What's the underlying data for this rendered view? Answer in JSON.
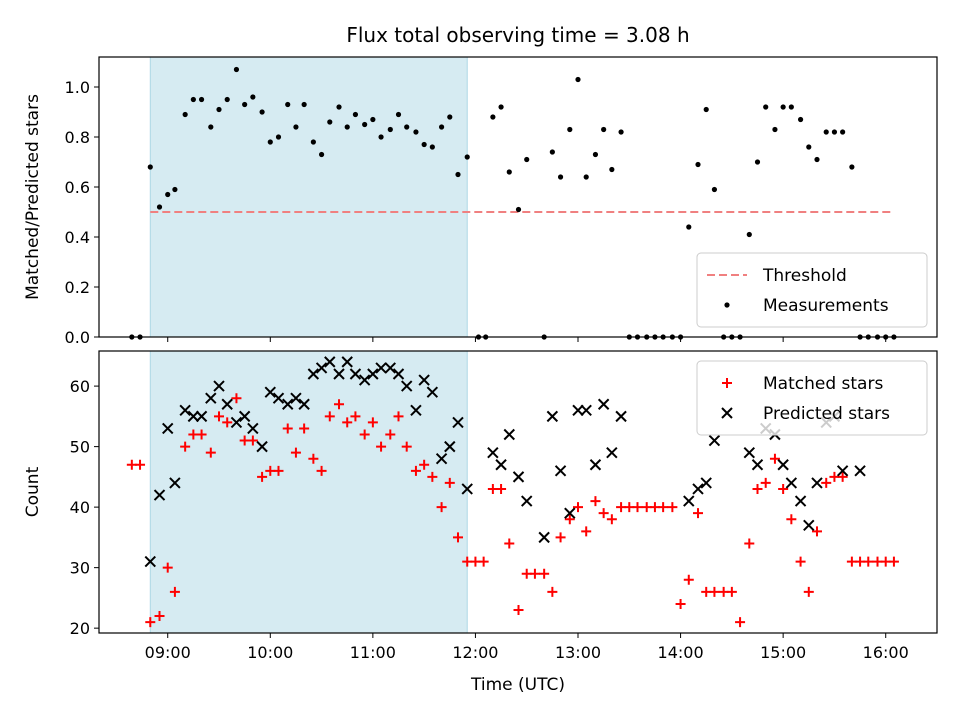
{
  "chart_data": [
    {
      "type": "scatter",
      "title": "Flux total observing time = 3.08 h",
      "xlabel": "",
      "ylabel": "Matched/Predicted stars",
      "xlim": [
        8.33,
        16.5
      ],
      "ylim": [
        0,
        1.12
      ],
      "yticks": [
        0.0,
        0.2,
        0.4,
        0.6,
        0.8,
        1.0
      ],
      "ytick_labels": [
        "0.0",
        "0.2",
        "0.4",
        "0.6",
        "0.8",
        "1.0"
      ],
      "xticks": [
        9,
        10,
        11,
        12,
        13,
        14,
        15,
        16
      ],
      "grid": false,
      "legend": "lower-right",
      "highlight_span": [
        8.83,
        11.92
      ],
      "threshold": {
        "name": "Threshold",
        "value": 0.5,
        "x_range": [
          8.83,
          16.05
        ],
        "color": "#f08080"
      },
      "series": [
        {
          "name": "Measurements",
          "color": "#000000",
          "marker": "dot",
          "x": [
            8.65,
            8.73,
            8.83,
            8.92,
            9.0,
            9.07,
            9.17,
            9.25,
            9.33,
            9.42,
            9.5,
            9.58,
            9.67,
            9.75,
            9.83,
            9.92,
            10.0,
            10.08,
            10.17,
            10.25,
            10.33,
            10.42,
            10.5,
            10.58,
            10.67,
            10.75,
            10.83,
            10.92,
            11.0,
            11.08,
            11.17,
            11.25,
            11.33,
            11.42,
            11.5,
            11.58,
            11.67,
            11.75,
            11.83,
            11.92,
            12.03,
            12.1,
            12.17,
            12.25,
            12.33,
            12.42,
            12.5,
            12.67,
            12.75,
            12.83,
            12.92,
            13.0,
            13.08,
            13.17,
            13.25,
            13.33,
            13.42,
            13.5,
            13.58,
            13.67,
            13.75,
            13.83,
            13.92,
            14.0,
            14.08,
            14.17,
            14.25,
            14.33,
            14.42,
            14.5,
            14.58,
            14.67,
            14.75,
            14.83,
            14.92,
            15.0,
            15.08,
            15.17,
            15.25,
            15.33,
            15.42,
            15.5,
            15.58,
            15.67,
            15.75,
            15.83,
            15.92,
            16.0,
            16.08
          ],
          "y": [
            0,
            0,
            0.68,
            0.52,
            0.57,
            0.59,
            0.89,
            0.95,
            0.95,
            0.84,
            0.91,
            0.95,
            1.07,
            0.93,
            0.96,
            0.9,
            0.78,
            0.8,
            0.93,
            0.84,
            0.93,
            0.78,
            0.73,
            0.86,
            0.92,
            0.84,
            0.89,
            0.85,
            0.87,
            0.8,
            0.83,
            0.89,
            0.84,
            0.82,
            0.77,
            0.76,
            0.84,
            0.88,
            0.65,
            0.72,
            0,
            0,
            0.88,
            0.92,
            0.66,
            0.51,
            0.71,
            0,
            0.74,
            0.64,
            0.83,
            1.03,
            0.64,
            0.73,
            0.83,
            0.67,
            0.82,
            0,
            0,
            0,
            0,
            0,
            0,
            0,
            0.44,
            0.69,
            0.91,
            0.59,
            0,
            0,
            0,
            0.41,
            0.7,
            0.92,
            0.83,
            0.92,
            0.92,
            0.87,
            0.76,
            0.71,
            0.82,
            0.82,
            0.82,
            0.68,
            0,
            0,
            0,
            0,
            0
          ]
        }
      ]
    },
    {
      "type": "scatter",
      "title": "",
      "xlabel": "Time (UTC)",
      "ylabel": "Count",
      "xlim": [
        8.33,
        16.5
      ],
      "ylim": [
        19.2,
        65.8
      ],
      "yticks": [
        20,
        30,
        40,
        50,
        60
      ],
      "xticks": [
        9,
        10,
        11,
        12,
        13,
        14,
        15,
        16
      ],
      "xtick_labels": [
        "09:00",
        "10:00",
        "11:00",
        "12:00",
        "13:00",
        "14:00",
        "15:00",
        "16:00"
      ],
      "grid": false,
      "legend": "top-right",
      "highlight_span": [
        8.83,
        11.92
      ],
      "series": [
        {
          "name": "Matched stars",
          "color": "#ff0000",
          "marker": "plus",
          "x": [
            8.65,
            8.73,
            8.83,
            8.92,
            9.0,
            9.07,
            9.17,
            9.25,
            9.33,
            9.42,
            9.5,
            9.58,
            9.67,
            9.75,
            9.83,
            9.92,
            10.0,
            10.08,
            10.17,
            10.25,
            10.33,
            10.42,
            10.5,
            10.58,
            10.67,
            10.75,
            10.83,
            10.92,
            11.0,
            11.08,
            11.17,
            11.25,
            11.33,
            11.42,
            11.5,
            11.58,
            11.67,
            11.75,
            11.83,
            11.92,
            12.0,
            12.08,
            12.17,
            12.25,
            12.33,
            12.42,
            12.5,
            12.58,
            12.67,
            12.75,
            12.83,
            12.92,
            13.0,
            13.08,
            13.17,
            13.25,
            13.33,
            13.42,
            13.5,
            13.58,
            13.67,
            13.75,
            13.83,
            13.92,
            14.0,
            14.08,
            14.17,
            14.25,
            14.33,
            14.42,
            14.5,
            14.58,
            14.67,
            14.75,
            14.83,
            14.92,
            15.0,
            15.08,
            15.17,
            15.25,
            15.33,
            15.42,
            15.5,
            15.58,
            15.67,
            15.75,
            15.83,
            15.92,
            16.0,
            16.08
          ],
          "y": [
            47,
            47,
            21,
            22,
            30,
            26,
            50,
            52,
            52,
            49,
            55,
            54,
            58,
            51,
            51,
            45,
            46,
            46,
            53,
            49,
            53,
            48,
            46,
            55,
            57,
            54,
            55,
            52,
            54,
            50,
            52,
            55,
            50,
            46,
            47,
            45,
            40,
            44,
            35,
            31,
            31,
            31,
            43,
            43,
            34,
            23,
            29,
            29,
            29,
            26,
            35,
            38,
            40,
            36,
            41,
            39,
            38,
            40,
            40,
            40,
            40,
            40,
            40,
            40,
            24,
            28,
            39,
            26,
            26,
            26,
            26,
            21,
            34,
            43,
            44,
            48,
            43,
            38,
            31,
            26,
            36,
            44,
            45,
            45,
            31,
            31,
            31,
            31,
            31,
            31
          ]
        },
        {
          "name": "Predicted stars",
          "color": "#000000",
          "marker": "x",
          "x": [
            8.83,
            8.92,
            9.0,
            9.07,
            9.17,
            9.25,
            9.33,
            9.42,
            9.5,
            9.58,
            9.67,
            9.75,
            9.83,
            9.92,
            10.0,
            10.08,
            10.17,
            10.25,
            10.33,
            10.42,
            10.5,
            10.58,
            10.67,
            10.75,
            10.83,
            10.92,
            11.0,
            11.08,
            11.17,
            11.25,
            11.33,
            11.42,
            11.5,
            11.58,
            11.67,
            11.75,
            11.83,
            11.92,
            12.17,
            12.25,
            12.33,
            12.42,
            12.5,
            12.67,
            12.75,
            12.83,
            12.92,
            13.0,
            13.08,
            13.17,
            13.25,
            13.33,
            13.42,
            14.08,
            14.17,
            14.25,
            14.33,
            14.67,
            14.75,
            14.83,
            14.92,
            15.0,
            15.08,
            15.17,
            15.25,
            15.33,
            15.42,
            15.5,
            15.58,
            15.75
          ],
          "y": [
            31,
            42,
            53,
            44,
            56,
            55,
            55,
            58,
            60,
            57,
            54,
            55,
            53,
            50,
            59,
            58,
            57,
            58,
            57,
            62,
            63,
            64,
            62,
            64,
            62,
            61,
            62,
            63,
            63,
            62,
            60,
            56,
            61,
            59,
            48,
            50,
            54,
            43,
            49,
            47,
            52,
            45,
            41,
            35,
            55,
            46,
            39,
            56,
            56,
            47,
            57,
            49,
            55,
            41,
            43,
            44,
            51,
            49,
            47,
            53,
            52,
            47,
            44,
            41,
            37,
            44,
            54,
            55,
            46,
            46
          ]
        }
      ]
    }
  ]
}
